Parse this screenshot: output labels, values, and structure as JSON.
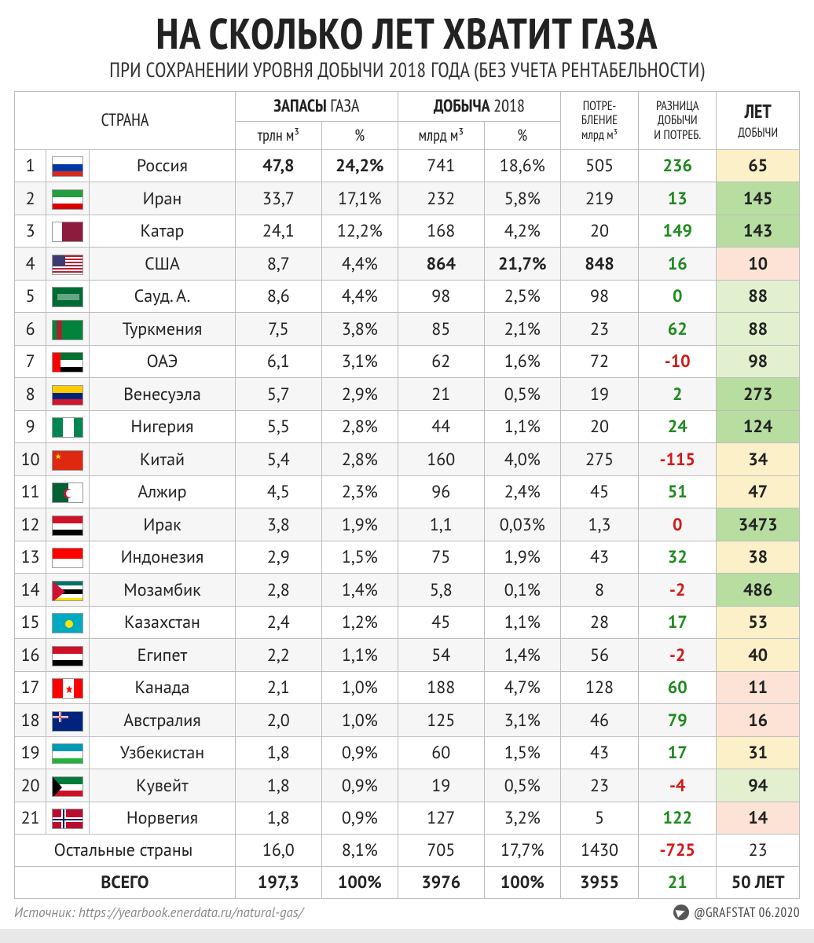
{
  "title": "НА СКОЛЬКО ЛЕТ ХВАТИТ ГАЗА",
  "subtitle": "ПРИ СОХРАНЕНИИ УРОВНЯ ДОБЫЧИ 2018 ГОДА (БЕЗ УЧЕТА РЕНТАБЕЛЬНОСТИ)",
  "headers": {
    "country": "СТРАНА",
    "reserves_group_a": "ЗАПАСЫ",
    "reserves_group_b": " ГАЗА",
    "reserves_unit": "трлн м³",
    "reserves_pct": "%",
    "extraction_group_a": "ДОБЫЧА",
    "extraction_group_b": " 2018",
    "extraction_unit": "млрд м³",
    "extraction_pct": "%",
    "consumption_a": "ПОТРЕ-",
    "consumption_b": "БЛЕНИЕ",
    "consumption_c": "млрд м³",
    "diff_a": "РАЗНИЦА",
    "diff_b": "ДОБЫЧИ",
    "diff_c": "И ПОТРЕБ.",
    "years_a": "ЛЕТ",
    "years_b": "ДОБЫЧИ"
  },
  "years_colors": {
    "low_bg": "#fde3d6",
    "mid_bg": "#fbf0c8",
    "high_bg": "#e3f0cf",
    "vhigh_bg": "#b7dda0"
  },
  "rows": [
    {
      "rank": "1",
      "flag": "ru",
      "name": "Россия",
      "res": "47,8",
      "res_pct": "24,2%",
      "extr": "741",
      "extr_pct": "18,6%",
      "cons": "505",
      "diff": "236",
      "diff_sign": "pos",
      "years": "65",
      "years_tier": "mid",
      "bold_res": true
    },
    {
      "rank": "2",
      "flag": "ir",
      "name": "Иран",
      "res": "33,7",
      "res_pct": "17,1%",
      "extr": "232",
      "extr_pct": "5,8%",
      "cons": "219",
      "diff": "13",
      "diff_sign": "pos",
      "years": "145",
      "years_tier": "vhigh"
    },
    {
      "rank": "3",
      "flag": "qa",
      "name": "Катар",
      "res": "24,1",
      "res_pct": "12,2%",
      "extr": "168",
      "extr_pct": "4,2%",
      "cons": "20",
      "diff": "149",
      "diff_sign": "pos",
      "years": "143",
      "years_tier": "vhigh"
    },
    {
      "rank": "4",
      "flag": "us",
      "name": "США",
      "res": "8,7",
      "res_pct": "4,4%",
      "extr": "864",
      "extr_pct": "21,7%",
      "cons": "848",
      "diff": "16",
      "diff_sign": "pos",
      "years": "10",
      "years_tier": "low",
      "bold_extr": true,
      "bold_cons": true
    },
    {
      "rank": "5",
      "flag": "sa",
      "name": "Сауд. А.",
      "res": "8,6",
      "res_pct": "4,4%",
      "extr": "98",
      "extr_pct": "2,5%",
      "cons": "98",
      "diff": "0",
      "diff_sign": "pos",
      "years": "88",
      "years_tier": "high"
    },
    {
      "rank": "6",
      "flag": "tm",
      "name": "Туркмения",
      "res": "7,5",
      "res_pct": "3,8%",
      "extr": "85",
      "extr_pct": "2,1%",
      "cons": "23",
      "diff": "62",
      "diff_sign": "pos",
      "years": "88",
      "years_tier": "high"
    },
    {
      "rank": "7",
      "flag": "ae",
      "name": "ОАЭ",
      "res": "6,1",
      "res_pct": "3,1%",
      "extr": "62",
      "extr_pct": "1,6%",
      "cons": "72",
      "diff": "-10",
      "diff_sign": "neg",
      "years": "98",
      "years_tier": "high"
    },
    {
      "rank": "8",
      "flag": "ve",
      "name": "Венесуэла",
      "res": "5,7",
      "res_pct": "2,9%",
      "extr": "21",
      "extr_pct": "0,5%",
      "cons": "19",
      "diff": "2",
      "diff_sign": "pos",
      "years": "273",
      "years_tier": "vhigh"
    },
    {
      "rank": "9",
      "flag": "ng",
      "name": "Нигерия",
      "res": "5,5",
      "res_pct": "2,8%",
      "extr": "44",
      "extr_pct": "1,1%",
      "cons": "20",
      "diff": "24",
      "diff_sign": "pos",
      "years": "124",
      "years_tier": "vhigh"
    },
    {
      "rank": "10",
      "flag": "cn",
      "name": "Китай",
      "res": "5,4",
      "res_pct": "2,8%",
      "extr": "160",
      "extr_pct": "4,0%",
      "cons": "275",
      "diff": "-115",
      "diff_sign": "neg",
      "years": "34",
      "years_tier": "mid"
    },
    {
      "rank": "11",
      "flag": "dz",
      "name": "Алжир",
      "res": "4,5",
      "res_pct": "2,3%",
      "extr": "96",
      "extr_pct": "2,4%",
      "cons": "45",
      "diff": "51",
      "diff_sign": "pos",
      "years": "47",
      "years_tier": "mid"
    },
    {
      "rank": "12",
      "flag": "iq",
      "name": "Ирак",
      "res": "3,8",
      "res_pct": "1,9%",
      "extr": "1,1",
      "extr_pct": "0,03%",
      "cons": "1,3",
      "diff": "0",
      "diff_sign": "neg",
      "years": "3473",
      "years_tier": "vhigh"
    },
    {
      "rank": "13",
      "flag": "id",
      "name": "Индонезия",
      "res": "2,9",
      "res_pct": "1,5%",
      "extr": "75",
      "extr_pct": "1,9%",
      "cons": "43",
      "diff": "32",
      "diff_sign": "pos",
      "years": "38",
      "years_tier": "mid"
    },
    {
      "rank": "14",
      "flag": "mz",
      "name": "Мозамбик",
      "res": "2,8",
      "res_pct": "1,4%",
      "extr": "5,8",
      "extr_pct": "0,1%",
      "cons": "8",
      "diff": "-2",
      "diff_sign": "neg",
      "years": "486",
      "years_tier": "vhigh"
    },
    {
      "rank": "15",
      "flag": "kz",
      "name": "Казахстан",
      "res": "2,4",
      "res_pct": "1,2%",
      "extr": "45",
      "extr_pct": "1,1%",
      "cons": "28",
      "diff": "17",
      "diff_sign": "pos",
      "years": "53",
      "years_tier": "mid"
    },
    {
      "rank": "16",
      "flag": "eg",
      "name": "Египет",
      "res": "2,2",
      "res_pct": "1,1%",
      "extr": "54",
      "extr_pct": "1,4%",
      "cons": "56",
      "diff": "-2",
      "diff_sign": "neg",
      "years": "40",
      "years_tier": "mid"
    },
    {
      "rank": "17",
      "flag": "ca",
      "name": "Канада",
      "res": "2,1",
      "res_pct": "1,0%",
      "extr": "188",
      "extr_pct": "4,7%",
      "cons": "128",
      "diff": "60",
      "diff_sign": "pos",
      "years": "11",
      "years_tier": "low"
    },
    {
      "rank": "18",
      "flag": "au",
      "name": "Австралия",
      "res": "2,0",
      "res_pct": "1,0%",
      "extr": "125",
      "extr_pct": "3,1%",
      "cons": "46",
      "diff": "79",
      "diff_sign": "pos",
      "years": "16",
      "years_tier": "low"
    },
    {
      "rank": "19",
      "flag": "uz",
      "name": "Узбекистан",
      "res": "1,8",
      "res_pct": "0,9%",
      "extr": "60",
      "extr_pct": "1,5%",
      "cons": "43",
      "diff": "17",
      "diff_sign": "pos",
      "years": "31",
      "years_tier": "mid"
    },
    {
      "rank": "20",
      "flag": "kw",
      "name": "Кувейт",
      "res": "1,8",
      "res_pct": "0,9%",
      "extr": "19",
      "extr_pct": "0,5%",
      "cons": "23",
      "diff": "-4",
      "diff_sign": "neg",
      "years": "94",
      "years_tier": "high"
    },
    {
      "rank": "21",
      "flag": "no",
      "name": "Норвегия",
      "res": "1,8",
      "res_pct": "0,9%",
      "extr": "127",
      "extr_pct": "3,2%",
      "cons": "5",
      "diff": "122",
      "diff_sign": "pos",
      "years": "14",
      "years_tier": "low"
    }
  ],
  "other": {
    "label": "Остальные страны",
    "res": "16,0",
    "res_pct": "8,1%",
    "extr": "705",
    "extr_pct": "17,7%",
    "cons": "1430",
    "diff": "-725",
    "diff_sign": "neg",
    "years": "23"
  },
  "total": {
    "label": "ВСЕГО",
    "res": "197,3",
    "res_pct": "100%",
    "extr": "3976",
    "extr_pct": "100%",
    "cons": "3955",
    "diff": "21",
    "diff_sign": "pos",
    "years": "50 ЛЕТ"
  },
  "source_label": "Источник: https://yearbook.enerdata.ru/natural-gas/",
  "credit": "@GRAFSTAT 06.2020"
}
